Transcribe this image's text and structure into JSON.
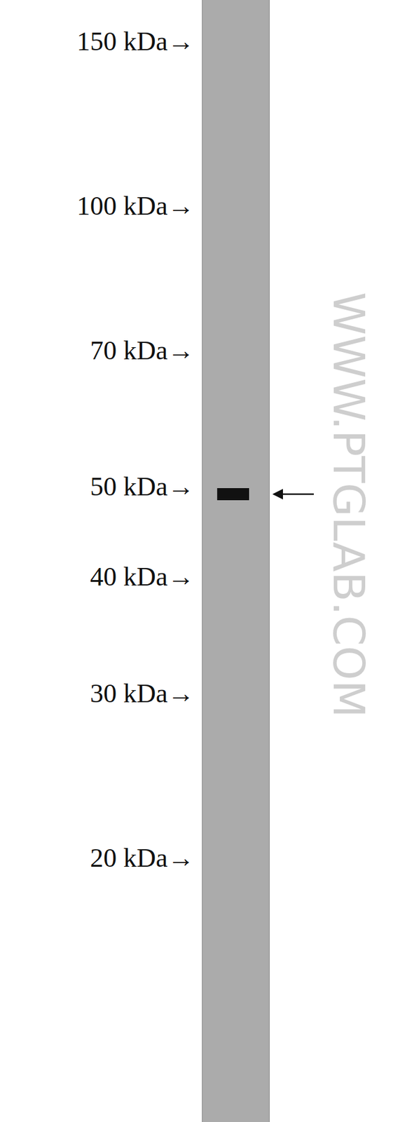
{
  "chart_data": {
    "type": "blot",
    "log": "y",
    "ylim": [
      10.4,
      166
    ],
    "yticks": [
      {
        "value": 150,
        "label": "150 kDa→"
      },
      {
        "value": 100,
        "label": "100 kDa→"
      },
      {
        "value": 70,
        "label": "70 kDa→"
      },
      {
        "value": 50,
        "label": "50 kDa→"
      },
      {
        "value": 40,
        "label": "40 kDa→"
      },
      {
        "value": 30,
        "label": "30 kDa→"
      },
      {
        "value": 20,
        "label": "20 kDa→"
      }
    ],
    "values": [
      49
    ],
    "color": "#111111",
    "annotations": [
      "WWW.PTGLAB.COM"
    ]
  }
}
